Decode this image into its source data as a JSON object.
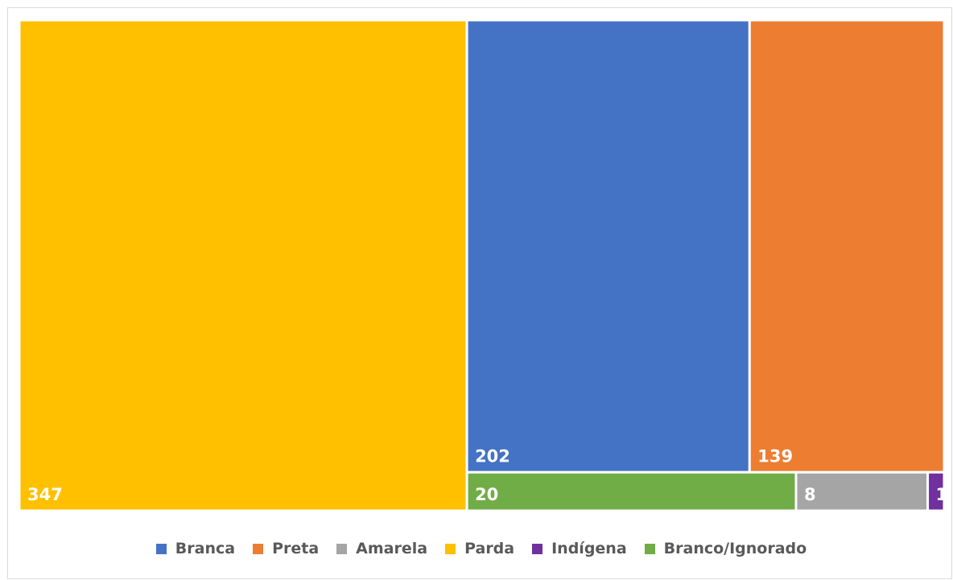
{
  "chart_data": {
    "type": "treemap",
    "title": "",
    "legend_position": "bottom",
    "categories": [
      "Branca",
      "Preta",
      "Amarela",
      "Parda",
      "Indígena",
      "Branco/Ignorado"
    ],
    "values": [
      202,
      139,
      8,
      347,
      1,
      20
    ],
    "colors": [
      "#4472C4",
      "#ED7D31",
      "#A5A5A5",
      "#FFC000",
      "#7030A0",
      "#70AD47"
    ],
    "data_labels": [
      "202",
      "139",
      "8",
      "347",
      "1",
      "20"
    ],
    "label_color": "#FFFFFF"
  }
}
